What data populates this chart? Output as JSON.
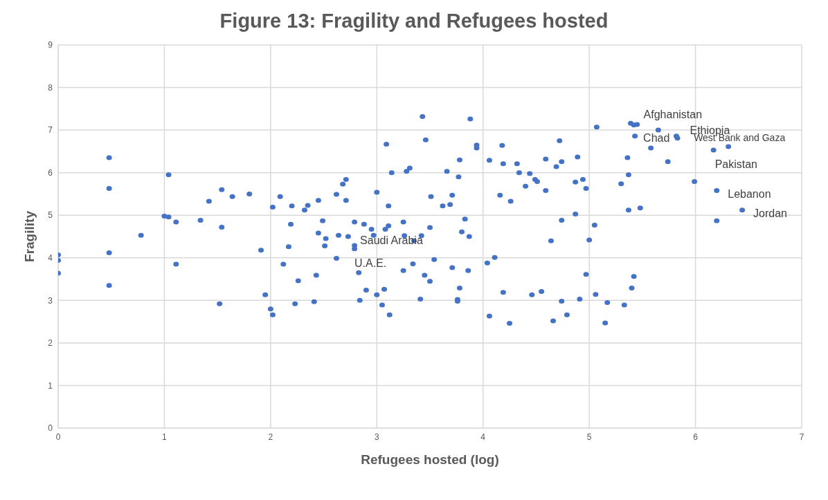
{
  "chart_data": {
    "type": "scatter",
    "title": "Figure 13: Fragility and Refugees hosted",
    "xlabel": "Refugees hosted (log)",
    "ylabel": "Fragility",
    "x": [
      0,
      0,
      0,
      0.48,
      0.48,
      0.48,
      0.48,
      0.78,
      1.0,
      1.04,
      1.04,
      1.11,
      1.11,
      1.34,
      1.42,
      1.52,
      1.54,
      1.54,
      1.64,
      1.8,
      1.91,
      1.95,
      2.0,
      2.02,
      2.02,
      2.09,
      2.2,
      2.19,
      2.17,
      2.12,
      2.26,
      2.23,
      2.32,
      2.35,
      2.45,
      2.45,
      2.43,
      2.41,
      2.49,
      2.52,
      2.51,
      2.62,
      2.64,
      2.62,
      2.68,
      2.71,
      2.71,
      2.73,
      2.79,
      2.79,
      2.79,
      2.83,
      2.84,
      2.88,
      2.9,
      2.95,
      2.97,
      3.0,
      3.0,
      3.05,
      3.07,
      3.09,
      3.11,
      3.12,
      3.14,
      3.08,
      3.11,
      3.25,
      3.26,
      3.25,
      3.28,
      3.31,
      3.34,
      3.35,
      3.41,
      3.42,
      3.43,
      3.45,
      3.46,
      3.5,
      3.5,
      3.51,
      3.54,
      3.62,
      3.66,
      3.69,
      3.71,
      3.71,
      3.76,
      3.76,
      3.77,
      3.78,
      3.78,
      3.8,
      3.83,
      3.86,
      3.87,
      3.88,
      3.94,
      3.94,
      4.04,
      4.06,
      4.06,
      4.11,
      4.16,
      4.18,
      4.19,
      4.19,
      4.25,
      4.26,
      4.32,
      4.34,
      4.4,
      4.44,
      4.46,
      4.49,
      4.51,
      4.55,
      4.59,
      4.59,
      4.64,
      4.66,
      4.69,
      4.72,
      4.74,
      4.74,
      4.74,
      4.79,
      4.87,
      4.87,
      4.89,
      4.91,
      4.94,
      4.97,
      4.97,
      5.0,
      5.05,
      5.06,
      5.07,
      5.15,
      5.17,
      5.3,
      5.33,
      5.36,
      5.37,
      5.37,
      5.39,
      5.4,
      5.42,
      5.42,
      5.43,
      5.45,
      5.48,
      5.58,
      5.65,
      5.74,
      5.82,
      5.83,
      5.99,
      6.17,
      6.2,
      6.2,
      6.31,
      6.44
    ],
    "values": [
      4.07,
      3.94,
      3.64,
      6.35,
      5.63,
      4.12,
      3.35,
      4.53,
      4.98,
      4.96,
      5.95,
      4.84,
      3.85,
      4.88,
      5.33,
      2.92,
      5.6,
      4.72,
      5.44,
      5.5,
      4.18,
      3.13,
      2.8,
      2.66,
      5.19,
      5.44,
      5.22,
      4.79,
      4.26,
      3.85,
      3.46,
      2.92,
      5.12,
      5.23,
      5.35,
      4.58,
      3.59,
      2.97,
      4.87,
      4.45,
      4.28,
      5.49,
      4.53,
      3.99,
      5.73,
      5.84,
      5.35,
      4.5,
      4.84,
      4.29,
      4.21,
      3.65,
      3.0,
      4.79,
      3.24,
      4.67,
      4.53,
      5.54,
      3.13,
      2.89,
      3.26,
      6.67,
      5.22,
      2.66,
      6.0,
      4.67,
      4.75,
      4.84,
      4.52,
      3.7,
      6.03,
      6.11,
      3.86,
      4.4,
      3.03,
      4.52,
      7.32,
      3.59,
      6.77,
      4.71,
      3.45,
      5.44,
      3.96,
      5.22,
      6.03,
      5.25,
      5.47,
      3.77,
      3.02,
      2.98,
      5.9,
      6.3,
      3.29,
      4.61,
      4.91,
      3.7,
      4.5,
      7.26,
      6.65,
      6.58,
      3.88,
      6.29,
      2.63,
      4.01,
      5.47,
      6.64,
      6.21,
      3.19,
      2.46,
      5.33,
      6.21,
      6.0,
      5.68,
      5.98,
      3.13,
      5.84,
      5.79,
      3.21,
      6.32,
      5.58,
      4.4,
      2.52,
      6.14,
      6.75,
      6.26,
      4.88,
      2.98,
      2.66,
      5.78,
      5.03,
      6.37,
      3.03,
      5.84,
      5.63,
      3.61,
      4.42,
      4.77,
      3.14,
      7.07,
      2.47,
      2.95,
      5.74,
      2.89,
      6.35,
      5.95,
      5.12,
      7.16,
      3.29,
      7.12,
      3.56,
      6.86,
      7.13,
      5.17,
      6.58,
      7.0,
      6.26,
      6.86,
      6.81,
      5.79,
      6.53,
      5.58,
      4.87,
      6.61,
      5.12
    ],
    "color": "#4472c4",
    "marker": "circle",
    "xlim": [
      0,
      7
    ],
    "ylim": [
      0,
      9
    ],
    "xticks": [
      0,
      1,
      2,
      3,
      4,
      5,
      6,
      7
    ],
    "yticks": [
      0,
      1,
      2,
      3,
      4,
      5,
      6,
      7,
      8,
      9
    ],
    "grid": true,
    "legend": false,
    "annotations": [
      {
        "text": "Afghanistan",
        "x": 5.42,
        "y": 7.12
      },
      {
        "text": "Ethiopia",
        "x": 5.83,
        "y": 6.81
      },
      {
        "text": "Chad",
        "x": 5.43,
        "y": 6.86
      },
      {
        "text": "West Bank and Gaza",
        "x": 6.31,
        "y": 6.61
      },
      {
        "text": "Pakistan",
        "x": 6.17,
        "y": 6.53
      },
      {
        "text": "Lebanon",
        "x": 6.2,
        "y": 5.58
      },
      {
        "text": "Jordan",
        "x": 6.44,
        "y": 5.12
      },
      {
        "text": "Saudi Arabia",
        "x": 2.79,
        "y": 4.29
      },
      {
        "text": "U.A.E.",
        "x": 2.79,
        "y": 4.21
      }
    ]
  }
}
